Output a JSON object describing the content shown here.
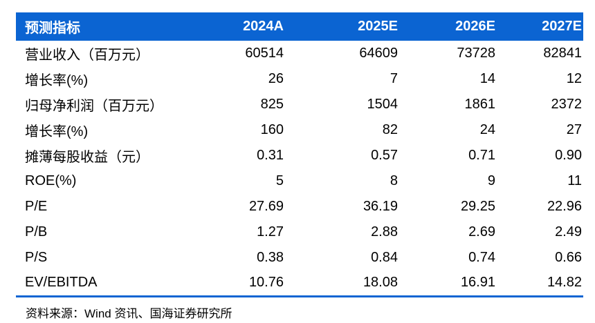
{
  "table": {
    "header": {
      "label": "预测指标",
      "columns": [
        "2024A",
        "2025E",
        "2026E",
        "2027E"
      ]
    },
    "rows": [
      {
        "label": "营业收入（百万元）",
        "values": [
          "60514",
          "64609",
          "73728",
          "82841"
        ]
      },
      {
        "label": "增长率(%)",
        "values": [
          "26",
          "7",
          "14",
          "12"
        ]
      },
      {
        "label": "归母净利润（百万元）",
        "values": [
          "825",
          "1504",
          "1861",
          "2372"
        ]
      },
      {
        "label": "增长率(%)",
        "values": [
          "160",
          "82",
          "24",
          "27"
        ]
      },
      {
        "label": "摊薄每股收益（元）",
        "values": [
          "0.31",
          "0.57",
          "0.71",
          "0.90"
        ]
      },
      {
        "label": "ROE(%)",
        "values": [
          "5",
          "8",
          "9",
          "11"
        ]
      },
      {
        "label": "P/E",
        "values": [
          "27.69",
          "36.19",
          "29.25",
          "22.96"
        ]
      },
      {
        "label": "P/B",
        "values": [
          "1.27",
          "2.88",
          "2.69",
          "2.49"
        ]
      },
      {
        "label": "P/S",
        "values": [
          "0.38",
          "0.84",
          "0.74",
          "0.66"
        ]
      },
      {
        "label": "EV/EBITDA",
        "values": [
          "10.76",
          "18.08",
          "16.91",
          "14.82"
        ]
      }
    ]
  },
  "footer": {
    "source_text": "资料来源：Wind 资讯、国海证券研究所"
  },
  "colors": {
    "header_bg": "#0b64d2",
    "header_text": "#ffffff",
    "divider": "#0b64d2",
    "body_text": "#000000"
  }
}
